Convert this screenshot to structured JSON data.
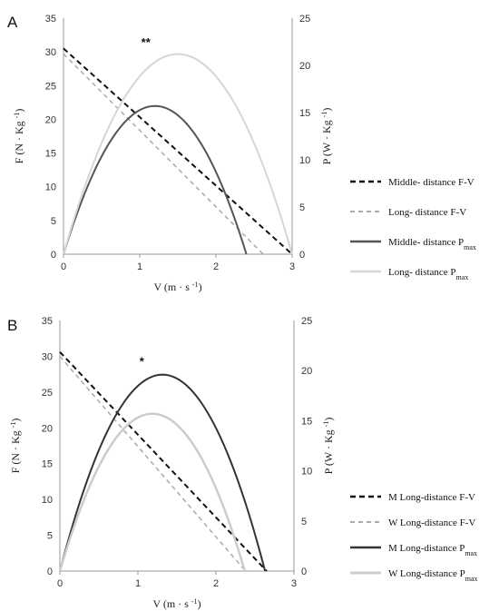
{
  "chart_data": [
    {
      "type": "line",
      "panel_label": "A",
      "title": "",
      "xlabel": "V (m · s",
      "xlabel_sup": "-1",
      "xlabel_end": ")",
      "ylabel": "F (N · Kg",
      "ylabel_sup": "-1",
      "ylabel_end": ")",
      "y2label": "P (W · Kg",
      "y2label_sup": "-1",
      "y2label_end": ")",
      "xlim": [
        0,
        3
      ],
      "ylim": [
        0,
        35
      ],
      "y2lim": [
        0,
        25
      ],
      "xticks": [
        "0",
        "1",
        "2",
        "3"
      ],
      "yticks": [
        "0",
        "5",
        "10",
        "15",
        "20",
        "25",
        "30",
        "35"
      ],
      "y2ticks": [
        "0",
        "5",
        "10",
        "15",
        "20",
        "25"
      ],
      "grid": false,
      "legend_position": "right",
      "annotation": {
        "text": "**",
        "x": 1.08,
        "y2": 22.4
      },
      "series": [
        {
          "name": "Middle- distance F-V",
          "name_sub": "",
          "kind": "fv",
          "axis": "left",
          "v0": 0,
          "f0": 30.5,
          "vmax": 3.0,
          "color": "#111111",
          "dash": "6,4",
          "width": 2
        },
        {
          "name": "Long- distance F-V",
          "name_sub": "",
          "kind": "fv",
          "axis": "left",
          "v0": 0,
          "f0": 29.7,
          "vmax": 2.62,
          "color": "#aaaaaa",
          "dash": "5,4",
          "width": 1.5
        },
        {
          "name": "Middle- distance P",
          "name_sub": "max",
          "kind": "pmax",
          "axis": "right",
          "vmax": 2.4,
          "pmax": 15.7,
          "color": "#555555",
          "dash": "",
          "width": 2
        },
        {
          "name": "Long- distance P",
          "name_sub": "max",
          "kind": "pmax",
          "axis": "right",
          "vmax": 3.0,
          "pmax": 21.2,
          "color": "#d6d6d6",
          "dash": "",
          "width": 2
        }
      ]
    },
    {
      "type": "line",
      "panel_label": "B",
      "title": "",
      "xlabel": "V (m · s",
      "xlabel_sup": "-1",
      "xlabel_end": ")",
      "ylabel": "F (N · Kg",
      "ylabel_sup": "-1",
      "ylabel_end": ")",
      "y2label": "P (W · Kg",
      "y2label_sup": "-1",
      "y2label_end": ")",
      "xlim": [
        0,
        3
      ],
      "ylim": [
        0,
        35
      ],
      "y2lim": [
        0,
        25
      ],
      "xticks": [
        "0",
        "1",
        "2",
        "3"
      ],
      "yticks": [
        "0",
        "5",
        "10",
        "15",
        "20",
        "25",
        "30",
        "35"
      ],
      "y2ticks": [
        "0",
        "5",
        "10",
        "15",
        "20",
        "25"
      ],
      "grid": false,
      "legend_position": "right",
      "annotation": {
        "text": "*",
        "x": 1.05,
        "y2": 20.9
      },
      "series": [
        {
          "name": "M Long-distance F-V",
          "name_sub": "",
          "kind": "fv",
          "axis": "left",
          "v0": 0,
          "f0": 30.6,
          "vmax": 2.65,
          "color": "#111111",
          "dash": "6,4",
          "width": 2
        },
        {
          "name": "W Long-distance F-V",
          "name_sub": "",
          "kind": "fv",
          "axis": "left",
          "v0": 0,
          "f0": 30.0,
          "vmax": 2.38,
          "color": "#aaaaaa",
          "dash": "5,4",
          "width": 1.5
        },
        {
          "name": "M Long-distance P",
          "name_sub": "max",
          "kind": "pmax",
          "axis": "right",
          "vmax": 2.63,
          "pmax": 19.6,
          "color": "#333333",
          "dash": "",
          "width": 2
        },
        {
          "name": "W Long-distance P",
          "name_sub": "max",
          "kind": "pmax",
          "axis": "right",
          "vmax": 2.37,
          "pmax": 15.7,
          "color": "#cccccc",
          "dash": "",
          "width": 2.5
        }
      ]
    }
  ]
}
